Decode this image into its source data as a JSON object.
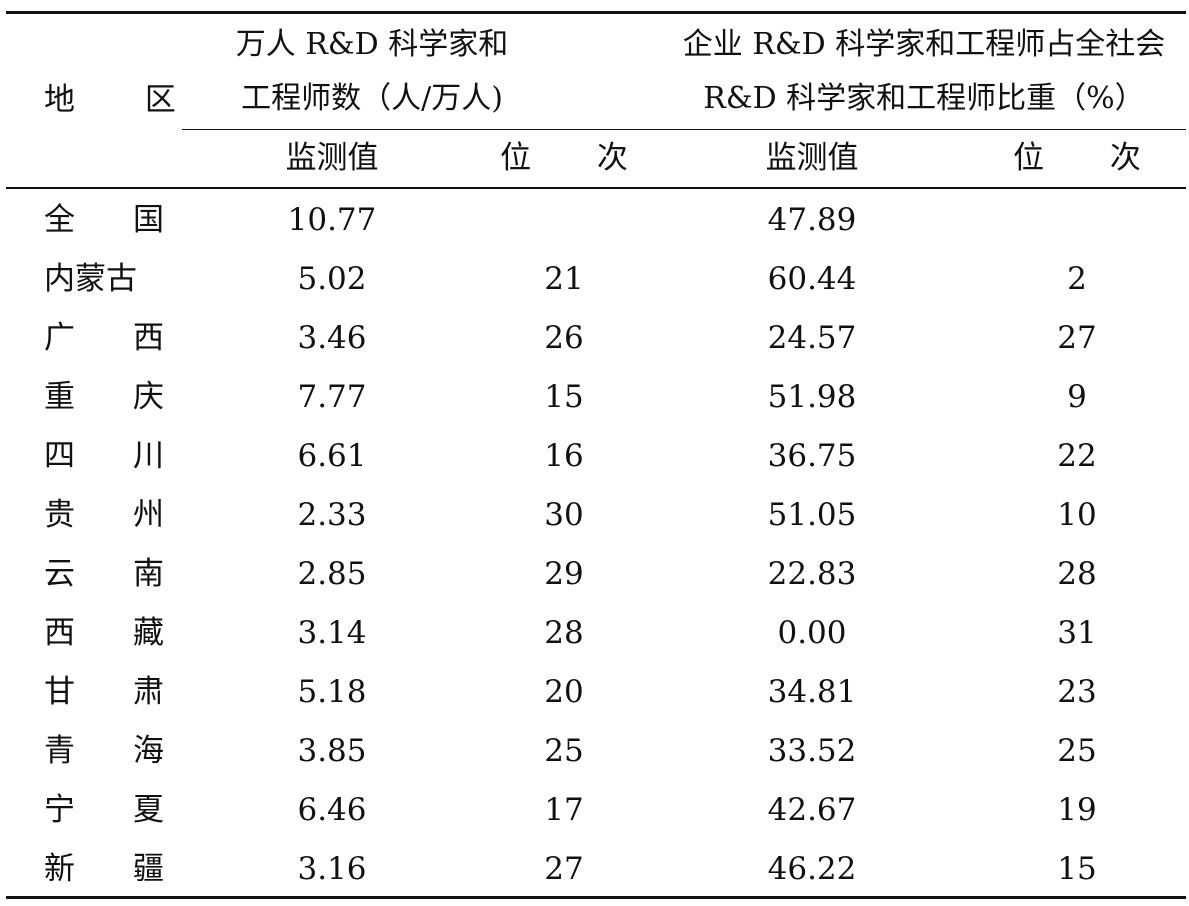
{
  "table": {
    "header": {
      "region": "地 区",
      "group1_line1": "万人 R&D 科学家和",
      "group1_line2": "工程师数（人/万人)",
      "group2_line1": "企业 R&D 科学家和工程师占全社会",
      "group2_line2": "R&D 科学家和工程师比重（%）",
      "monitor_value": "监测值",
      "rank": "位 次"
    },
    "rows": [
      {
        "region_a": "全",
        "region_b": "国",
        "value1": "10.77",
        "rank1": "",
        "value2": "47.89",
        "rank2": ""
      },
      {
        "region_a": "内蒙古",
        "region_b": "",
        "value1": "5.02",
        "rank1": "21",
        "value2": "60.44",
        "rank2": "2"
      },
      {
        "region_a": "广",
        "region_b": "西",
        "value1": "3.46",
        "rank1": "26",
        "value2": "24.57",
        "rank2": "27"
      },
      {
        "region_a": "重",
        "region_b": "庆",
        "value1": "7.77",
        "rank1": "15",
        "value2": "51.98",
        "rank2": "9"
      },
      {
        "region_a": "四",
        "region_b": "川",
        "value1": "6.61",
        "rank1": "16",
        "value2": "36.75",
        "rank2": "22"
      },
      {
        "region_a": "贵",
        "region_b": "州",
        "value1": "2.33",
        "rank1": "30",
        "value2": "51.05",
        "rank2": "10"
      },
      {
        "region_a": "云",
        "region_b": "南",
        "value1": "2.85",
        "rank1": "29",
        "value2": "22.83",
        "rank2": "28"
      },
      {
        "region_a": "西",
        "region_b": "藏",
        "value1": "3.14",
        "rank1": "28",
        "value2": "0.00",
        "rank2": "31"
      },
      {
        "region_a": "甘",
        "region_b": "肃",
        "value1": "5.18",
        "rank1": "20",
        "value2": "34.81",
        "rank2": "23"
      },
      {
        "region_a": "青",
        "region_b": "海",
        "value1": "3.85",
        "rank1": "25",
        "value2": "33.52",
        "rank2": "25"
      },
      {
        "region_a": "宁",
        "region_b": "夏",
        "value1": "6.46",
        "rank1": "17",
        "value2": "42.67",
        "rank2": "19"
      },
      {
        "region_a": "新",
        "region_b": "疆",
        "value1": "3.16",
        "rank1": "27",
        "value2": "46.22",
        "rank2": "15"
      }
    ]
  }
}
